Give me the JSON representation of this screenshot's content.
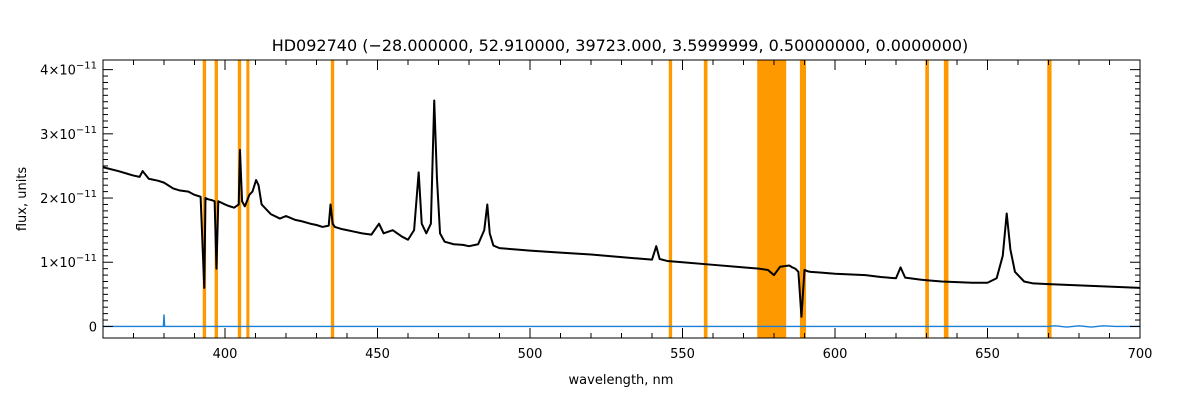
{
  "chart_data": {
    "type": "line",
    "title": "HD092740   (−28.000000, 52.910000, 39723.000, 3.5999999, 0.50000000, 0.0000000)",
    "xlabel": "wavelength, nm",
    "ylabel": "flux, units",
    "xlim": [
      360,
      700
    ],
    "ylim": [
      -1.8e-12,
      4.15e-11
    ],
    "x_ticks": [
      400,
      450,
      500,
      550,
      600,
      650,
      700
    ],
    "x_tick_labels": [
      "400",
      "450",
      "500",
      "550",
      "600",
      "650",
      "700"
    ],
    "y_ticks": [
      0,
      1e-11,
      2e-11,
      3e-11,
      4e-11
    ],
    "y_tick_labels": [
      {
        "base": "0",
        "exp": ""
      },
      {
        "base": "1×10",
        "exp": "−11"
      },
      {
        "base": "2×10",
        "exp": "−11"
      },
      {
        "base": "3×10",
        "exp": "−11"
      },
      {
        "base": "4×10",
        "exp": "−11"
      }
    ],
    "grid": false,
    "colors": {
      "spectrum": "#000000",
      "error": "#1a7fd6",
      "mask": "#ff9900"
    },
    "mask_bands": [
      [
        392.7,
        393.8
      ],
      [
        396.6,
        397.7
      ],
      [
        404.2,
        405.3
      ],
      [
        407.0,
        408.0
      ],
      [
        434.7,
        435.8
      ],
      [
        545.5,
        546.6
      ],
      [
        557.0,
        558.2
      ],
      [
        574.5,
        584.0
      ],
      [
        588.5,
        590.5
      ],
      [
        629.6,
        630.8
      ],
      [
        635.7,
        637.2
      ],
      [
        669.6,
        671.0
      ]
    ],
    "series": [
      {
        "x": [
          360,
          365,
          370,
          372,
          373,
          375,
          378,
          380,
          383,
          385,
          388,
          390,
          392,
          393.2,
          393.6,
          394.5,
          395.5,
          396.6,
          397.2,
          397.8,
          400,
          401,
          403,
          404.5,
          404.9,
          405.6,
          406.5,
          408,
          409,
          410.2,
          411,
          412,
          415,
          418,
          420,
          421,
          423,
          425,
          428,
          430,
          432,
          434,
          434.6,
          435.3,
          436,
          438,
          440,
          442,
          445,
          448,
          450.5,
          452,
          455,
          458,
          460,
          462,
          463.5,
          464.5,
          466,
          467.5,
          468.6,
          469.5,
          470.5,
          472,
          475,
          478,
          480,
          483,
          485,
          486,
          486.8,
          488,
          490,
          495,
          500,
          510,
          520,
          530,
          535,
          540,
          541.4,
          542.5,
          545,
          550,
          560,
          570,
          575,
          578,
          580,
          582,
          585,
          586,
          587,
          588,
          589,
          590,
          591,
          592,
          595,
          600,
          610,
          615,
          620,
          621.5,
          623,
          628,
          630,
          635,
          640,
          645,
          650,
          653,
          655,
          656.3,
          657.5,
          659,
          662,
          665,
          670,
          675,
          680,
          685,
          690,
          695,
          700
        ],
        "y": [
          2.48e-11,
          2.42e-11,
          2.35e-11,
          2.33e-11,
          2.42e-11,
          2.3e-11,
          2.27e-11,
          2.24e-11,
          2.15e-11,
          2.12e-11,
          2.1e-11,
          2.05e-11,
          2.02e-11,
          6e-12,
          2e-11,
          1.98e-11,
          1.97e-11,
          1.95e-11,
          9e-12,
          1.95e-11,
          1.9e-11,
          1.88e-11,
          1.85e-11,
          1.9e-11,
          2.75e-11,
          1.95e-11,
          1.87e-11,
          2.05e-11,
          2.1e-11,
          2.28e-11,
          2.2e-11,
          1.9e-11,
          1.75e-11,
          1.68e-11,
          1.72e-11,
          1.7e-11,
          1.66e-11,
          1.64e-11,
          1.6e-11,
          1.58e-11,
          1.55e-11,
          1.57e-11,
          1.9e-11,
          1.6e-11,
          1.55e-11,
          1.52e-11,
          1.5e-11,
          1.48e-11,
          1.45e-11,
          1.43e-11,
          1.6e-11,
          1.45e-11,
          1.5e-11,
          1.4e-11,
          1.35e-11,
          1.5e-11,
          2.4e-11,
          1.6e-11,
          1.45e-11,
          1.6e-11,
          3.52e-11,
          2.3e-11,
          1.45e-11,
          1.32e-11,
          1.28e-11,
          1.27e-11,
          1.25e-11,
          1.28e-11,
          1.5e-11,
          1.9e-11,
          1.45e-11,
          1.26e-11,
          1.22e-11,
          1.2e-11,
          1.18e-11,
          1.15e-11,
          1.12e-11,
          1.08e-11,
          1.06e-11,
          1.04e-11,
          1.25e-11,
          1.05e-11,
          1.02e-11,
          1e-11,
          9.6e-12,
          9.2e-12,
          9e-12,
          8.8e-12,
          8e-12,
          9.3e-12,
          9.5e-12,
          9.2e-12,
          9e-12,
          8.5e-12,
          1.5e-12,
          8.8e-12,
          8.6e-12,
          8.5e-12,
          8.4e-12,
          8.2e-12,
          8e-12,
          7.7e-12,
          7.5e-12,
          9.2e-12,
          7.6e-12,
          7.3e-12,
          7.2e-12,
          7e-12,
          6.9e-12,
          6.8e-12,
          6.8e-12,
          7.5e-12,
          1.1e-11,
          1.76e-11,
          1.2e-11,
          8.5e-12,
          7e-12,
          6.7e-12,
          6.6e-12,
          6.5e-12,
          6.4e-12,
          6.3e-12,
          6.2e-12,
          6.1e-12,
          6e-12
        ]
      },
      {
        "x": [
          360,
          379.8,
          380,
          380.2,
          670,
          672,
          676,
          680,
          684,
          688,
          692,
          700
        ],
        "y": [
          0,
          0,
          1.8e-12,
          0,
          0,
          1e-13,
          -1e-13,
          1e-13,
          -1e-13,
          1e-13,
          0,
          0
        ]
      }
    ]
  }
}
